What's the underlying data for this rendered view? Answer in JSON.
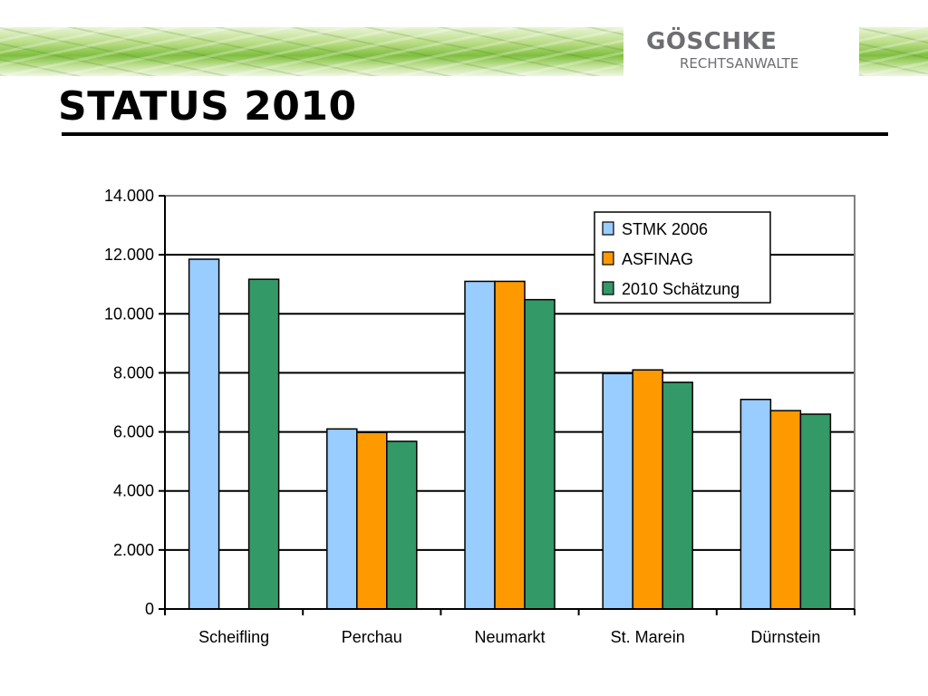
{
  "header": {
    "logo_name": "GÖSCHKE",
    "logo_sub": "RECHTSANWALTE"
  },
  "slide": {
    "title": "STATUS 2010"
  },
  "chart_data": {
    "type": "bar",
    "categories": [
      "Scheifling",
      "Perchau",
      "Neumarkt",
      "St. Marein",
      "Dürnstein"
    ],
    "series": [
      {
        "name": "STMK 2006",
        "color": "#99ccff",
        "values": [
          11850,
          6100,
          11100,
          7980,
          7100
        ]
      },
      {
        "name": "ASFINAG",
        "color": "#ff9900",
        "values": [
          null,
          5980,
          11100,
          8100,
          6720
        ]
      },
      {
        "name": "2010 Schätzung",
        "color": "#339966",
        "values": [
          11170,
          5680,
          10480,
          7680,
          6600
        ]
      }
    ],
    "ylim": [
      0,
      14000
    ],
    "yticks": [
      0,
      2000,
      4000,
      6000,
      8000,
      10000,
      12000,
      14000
    ],
    "ytick_labels": [
      "0",
      "2.000",
      "4.000",
      "6.000",
      "8.000",
      "10.000",
      "12.000",
      "14.000"
    ],
    "grid": true,
    "legend": "top-right"
  }
}
